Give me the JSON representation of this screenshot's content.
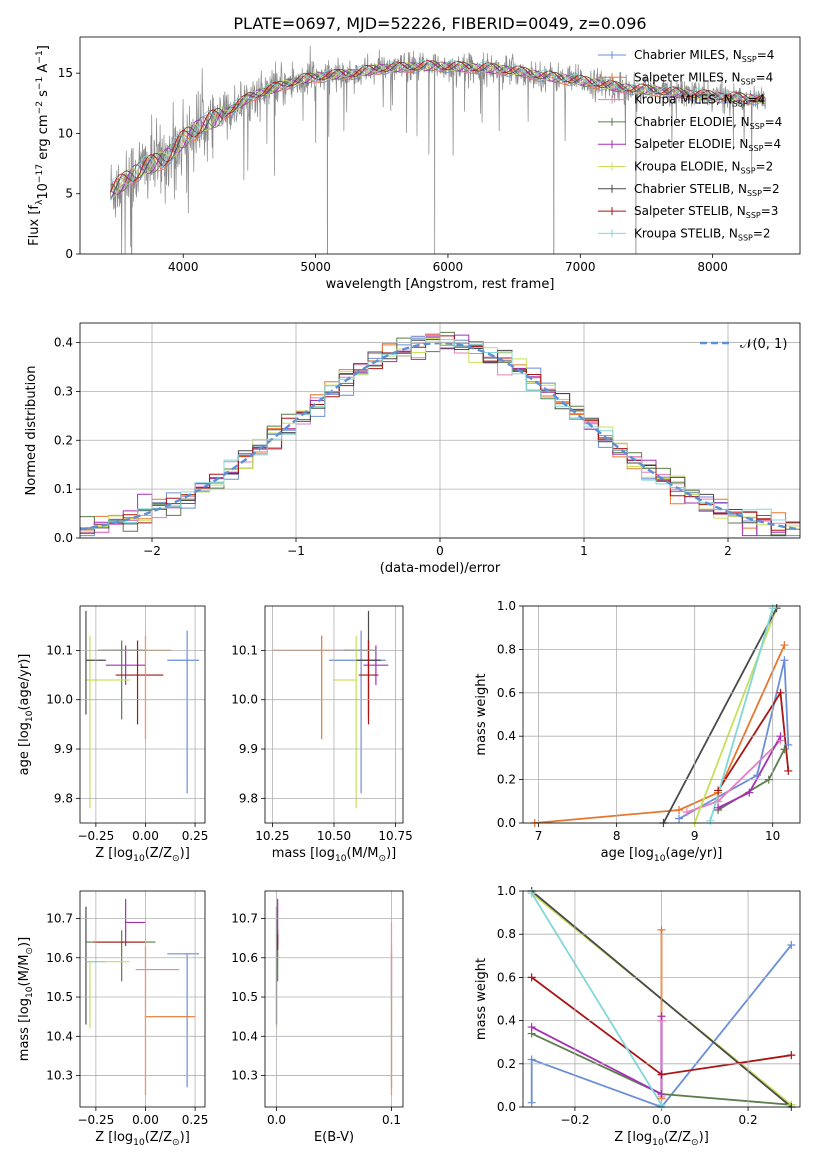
{
  "figure_title": "PLATE=0697, MJD=52226, FIBERID=0049, z=0.096",
  "colors": {
    "chabrier_miles": "#6a8fd8",
    "salpeter_miles": "#e8772e",
    "kroupa_miles": "#e77fbf",
    "chabrier_elodie": "#5b7d4b",
    "salpeter_elodie": "#a52fb5",
    "kroupa_elodie": "#c8e05a",
    "chabrier_stelib": "#4a4a4a",
    "salpeter_stelib": "#a81616",
    "kroupa_stelib": "#80d8d8",
    "data": "#888888",
    "normal": "#5b8fd6"
  },
  "chart_data": [
    {
      "id": "spectrum",
      "type": "line",
      "title": "PLATE=0697, MJD=52226, FIBERID=0049, z=0.096",
      "xlabel": "wavelength [Angstrom, rest frame]",
      "ylabel_parts": [
        "Flux [f",
        "λ",
        "10",
        "−17",
        " erg cm",
        "−2",
        " s",
        "−1",
        " A",
        "−1",
        "]"
      ],
      "xlim": [
        3220,
        8660
      ],
      "ylim": [
        0,
        18
      ],
      "xticks": [
        4000,
        5000,
        6000,
        7000,
        8000
      ],
      "yticks": [
        0,
        5,
        10,
        15
      ],
      "continuum": {
        "x": [
          3450,
          3550,
          3700,
          3850,
          4000,
          4150,
          4300,
          4500,
          4700,
          4900,
          5100,
          5300,
          5500,
          5700,
          5900,
          6100,
          6300,
          6500,
          6700,
          6900,
          7100,
          7300,
          7500,
          7700,
          7900,
          8100,
          8300,
          8400
        ],
        "y": [
          5.2,
          6.0,
          7.2,
          7.8,
          9.5,
          10.8,
          11.5,
          13.0,
          13.8,
          14.5,
          14.8,
          15.0,
          15.4,
          15.5,
          15.6,
          15.5,
          15.4,
          15.2,
          14.8,
          14.5,
          14.2,
          13.8,
          13.6,
          13.4,
          13.2,
          13.0,
          12.9,
          12.8
        ]
      },
      "legend": [
        {
          "label": "Chabrier MILES, N",
          "sub": "SSP",
          "n": "=4",
          "color": "#6a8fd8"
        },
        {
          "label": "Salpeter MILES, N",
          "sub": "SSP",
          "n": "=4",
          "color": "#e8772e"
        },
        {
          "label": "Kroupa MILES, N",
          "sub": "SSP",
          "n": "=4",
          "color": "#e77fbf"
        },
        {
          "label": "Chabrier ELODIE, N",
          "sub": "SSP",
          "n": "=4",
          "color": "#5b7d4b"
        },
        {
          "label": "Salpeter ELODIE, N",
          "sub": "SSP",
          "n": "=4",
          "color": "#a52fb5"
        },
        {
          "label": "Kroupa ELODIE, N",
          "sub": "SSP",
          "n": "=2",
          "color": "#c8e05a"
        },
        {
          "label": "Chabrier STELIB, N",
          "sub": "SSP",
          "n": "=2",
          "color": "#4a4a4a"
        },
        {
          "label": "Salpeter STELIB, N",
          "sub": "SSP",
          "n": "=3",
          "color": "#a81616"
        },
        {
          "label": "Kroupa STELIB, N",
          "sub": "SSP",
          "n": "=2",
          "color": "#80d8d8"
        }
      ],
      "legend_placement": "right",
      "grid": false
    },
    {
      "id": "residuals",
      "type": "histogram",
      "xlabel": "(data-model)/error",
      "ylabel": "Normed distribution",
      "xlim": [
        -2.5,
        2.5
      ],
      "ylim": [
        0,
        0.44
      ],
      "xticks": [
        -2,
        -1,
        0,
        1,
        2
      ],
      "yticks": [
        0.0,
        0.1,
        0.2,
        0.3,
        0.4
      ],
      "bin_width": 0.1,
      "n_histograms": 9,
      "reference_curve": "normal(0,1)",
      "legend": [
        {
          "label": "𝒩(0, 1)",
          "color": "#5b8fd6",
          "style": "dashed"
        }
      ],
      "legend_placement": "top-right",
      "grid": true
    },
    {
      "id": "age_vs_Z",
      "type": "errorbar",
      "xlabel_parts": [
        "Z [log",
        "10",
        "(Z/Z",
        "⊙",
        ")]"
      ],
      "ylabel_parts": [
        "age  [log",
        "10",
        "(age/yr)]"
      ],
      "xlim": [
        -0.33,
        0.3
      ],
      "ylim": [
        9.75,
        10.19
      ],
      "xticks": [
        -0.25,
        0.0,
        0.25
      ],
      "yticks": [
        9.8,
        9.9,
        10.0,
        10.1
      ],
      "points": [
        {
          "x": 0.21,
          "xerr": [
            0.1,
            0.06
          ],
          "y": 10.08,
          "yerr": [
            0.27,
            0.06
          ],
          "color": "#6a8fd8"
        },
        {
          "x": 0.0,
          "xerr": [
            0.17,
            0.13
          ],
          "y": 10.1,
          "yerr": [
            0.18,
            0.03
          ],
          "color": "#e8772e"
        },
        {
          "x": -0.12,
          "xerr": [
            0.1,
            0.1
          ],
          "y": 10.1,
          "yerr": [
            0.0,
            0.0
          ],
          "color": "#e77fbf"
        },
        {
          "x": -0.12,
          "xerr": [
            0.12,
            0.12
          ],
          "y": 10.1,
          "yerr": [
            0.14,
            0.02
          ],
          "color": "#5b7d4b"
        },
        {
          "x": -0.1,
          "xerr": [
            0.1,
            0.1
          ],
          "y": 10.07,
          "yerr": [
            0.04,
            0.04
          ],
          "color": "#a52fb5"
        },
        {
          "x": -0.28,
          "xerr": [
            0.02,
            0.2
          ],
          "y": 10.04,
          "yerr": [
            0.26,
            0.09
          ],
          "color": "#c8e05a"
        },
        {
          "x": -0.3,
          "xerr": [
            0.0,
            0.1
          ],
          "y": 10.08,
          "yerr": [
            0.11,
            0.1
          ],
          "color": "#4a4a4a"
        },
        {
          "x": -0.04,
          "xerr": [
            0.11,
            0.13
          ],
          "y": 10.05,
          "yerr": [
            0.1,
            0.07
          ],
          "color": "#a81616"
        },
        {
          "x": -0.28,
          "xerr": [
            0.0,
            0.0
          ],
          "y": 10.04,
          "yerr": [
            0.0,
            0.0
          ],
          "color": "#80d8d8"
        }
      ],
      "grid": true
    },
    {
      "id": "age_vs_mass",
      "type": "errorbar",
      "xlabel_parts": [
        "mass [log",
        "10",
        "(M/M",
        "⊙",
        ")]"
      ],
      "xlim": [
        10.22,
        10.78
      ],
      "ylim": [
        9.75,
        10.19
      ],
      "xticks": [
        10.25,
        10.5,
        10.75
      ],
      "yticks": [
        9.8,
        9.9,
        10.0,
        10.1
      ],
      "points": [
        {
          "x": 10.61,
          "xerr": [
            0.13,
            0.1
          ],
          "y": 10.08,
          "yerr": [
            0.27,
            0.06
          ],
          "color": "#6a8fd8"
        },
        {
          "x": 10.45,
          "xerr": [
            0.2,
            0.1
          ],
          "y": 10.1,
          "yerr": [
            0.18,
            0.03
          ],
          "color": "#e8772e"
        },
        {
          "x": 10.57,
          "xerr": [
            0.08,
            0.08
          ],
          "y": 10.1,
          "yerr": [
            0.0,
            0.0
          ],
          "color": "#e77fbf"
        },
        {
          "x": 10.64,
          "xerr": [
            0.1,
            0.03
          ],
          "y": 10.1,
          "yerr": [
            0.14,
            0.02
          ],
          "color": "#5b7d4b"
        },
        {
          "x": 10.67,
          "xerr": [
            0.05,
            0.05
          ],
          "y": 10.07,
          "yerr": [
            0.04,
            0.04
          ],
          "color": "#a52fb5"
        },
        {
          "x": 10.59,
          "xerr": [
            0.09,
            0.0
          ],
          "y": 10.04,
          "yerr": [
            0.26,
            0.09
          ],
          "color": "#c8e05a"
        },
        {
          "x": 10.64,
          "xerr": [
            0.05,
            0.05
          ],
          "y": 10.08,
          "yerr": [
            0.11,
            0.1
          ],
          "color": "#4a4a4a"
        },
        {
          "x": 10.64,
          "xerr": [
            0.04,
            0.04
          ],
          "y": 10.05,
          "yerr": [
            0.1,
            0.07
          ],
          "color": "#a81616"
        },
        {
          "x": 10.59,
          "xerr": [
            0.0,
            0.0
          ],
          "y": 10.04,
          "yerr": [
            0.0,
            0.0
          ],
          "color": "#80d8d8"
        }
      ],
      "grid": true
    },
    {
      "id": "weight_vs_age",
      "type": "line",
      "xlabel_parts": [
        "age  [log",
        "10",
        "(age/yr)]"
      ],
      "ylabel": "mass weight",
      "xlim": [
        6.8,
        10.35
      ],
      "ylim": [
        0,
        1
      ],
      "xticks": [
        7,
        8,
        9,
        10
      ],
      "yticks": [
        0.0,
        0.2,
        0.4,
        0.6,
        0.8,
        1.0
      ],
      "series": [
        {
          "color": "#6a8fd8",
          "x": [
            8.8,
            9.8,
            10.15,
            10.2
          ],
          "y": [
            0.02,
            0.22,
            0.75,
            0.36
          ]
        },
        {
          "color": "#e8772e",
          "x": [
            6.95,
            8.8,
            9.3,
            10.15
          ],
          "y": [
            0.0,
            0.06,
            0.14,
            0.82
          ]
        },
        {
          "color": "#e77fbf",
          "x": [
            8.9,
            9.3,
            10.1
          ],
          "y": [
            0.05,
            0.1,
            0.38
          ]
        },
        {
          "color": "#5b7d4b",
          "x": [
            9.3,
            9.95,
            10.15
          ],
          "y": [
            0.06,
            0.2,
            0.34
          ]
        },
        {
          "color": "#a52fb5",
          "x": [
            9.3,
            9.7,
            10.1
          ],
          "y": [
            0.07,
            0.14,
            0.4
          ]
        },
        {
          "color": "#c8e05a",
          "x": [
            9.0,
            10.05
          ],
          "y": [
            0.0,
            0.99
          ]
        },
        {
          "color": "#4a4a4a",
          "x": [
            8.6,
            10.05
          ],
          "y": [
            0.0,
            0.99
          ]
        },
        {
          "color": "#a81616",
          "x": [
            9.3,
            10.1,
            10.2
          ],
          "y": [
            0.15,
            0.6,
            0.24
          ]
        },
        {
          "color": "#80d8d8",
          "x": [
            9.2,
            10.0
          ],
          "y": [
            0.01,
            0.99
          ]
        }
      ],
      "grid": true
    },
    {
      "id": "mass_vs_Z",
      "type": "errorbar",
      "xlabel_parts": [
        "Z [log",
        "10",
        "(Z/Z",
        "⊙",
        ")]"
      ],
      "ylabel_parts": [
        "mass [log",
        "10",
        "(M/M",
        "⊙",
        ")]"
      ],
      "xlim": [
        -0.33,
        0.3
      ],
      "ylim": [
        10.22,
        10.77
      ],
      "xticks": [
        -0.25,
        0.0,
        0.25
      ],
      "yticks": [
        10.3,
        10.4,
        10.5,
        10.6,
        10.7
      ],
      "points": [
        {
          "x": 0.21,
          "xerr": [
            0.1,
            0.06
          ],
          "y": 10.61,
          "yerr": [
            0.34,
            0.0
          ],
          "color": "#6a8fd8"
        },
        {
          "x": 0.0,
          "xerr": [
            0.0,
            0.25
          ],
          "y": 10.45,
          "yerr": [
            0.2,
            0.18
          ],
          "color": "#e8772e"
        },
        {
          "x": 0.05,
          "xerr": [
            0.1,
            0.12
          ],
          "y": 10.57,
          "yerr": [
            0.0,
            0.0
          ],
          "color": "#e77fbf"
        },
        {
          "x": -0.12,
          "xerr": [
            0.18,
            0.17
          ],
          "y": 10.64,
          "yerr": [
            0.1,
            0.03
          ],
          "color": "#5b7d4b"
        },
        {
          "x": -0.1,
          "xerr": [
            0.0,
            0.1
          ],
          "y": 10.69,
          "yerr": [
            0.06,
            0.06
          ],
          "color": "#a52fb5"
        },
        {
          "x": -0.28,
          "xerr": [
            0.02,
            0.2
          ],
          "y": 10.59,
          "yerr": [
            0.17,
            0.0
          ],
          "color": "#c8e05a"
        },
        {
          "x": -0.3,
          "xerr": [
            0.0,
            0.0
          ],
          "y": 10.64,
          "yerr": [
            0.21,
            0.09
          ],
          "color": "#4a4a4a"
        },
        {
          "x": -0.04,
          "xerr": [
            0.22,
            0.04
          ],
          "y": 10.64,
          "yerr": [
            0.0,
            0.0
          ],
          "color": "#a81616"
        },
        {
          "x": -0.26,
          "xerr": [
            0.04,
            0.06
          ],
          "y": 10.59,
          "yerr": [
            0.0,
            0.0
          ],
          "color": "#80d8d8"
        }
      ],
      "grid": true
    },
    {
      "id": "mass_vs_ebv",
      "type": "errorbar",
      "xlabel": "E(B-V)",
      "xlim": [
        -0.01,
        0.11
      ],
      "ylim": [
        10.22,
        10.77
      ],
      "xticks": [
        0.0,
        0.1
      ],
      "yticks": [
        10.3,
        10.4,
        10.5,
        10.6,
        10.7
      ],
      "points": [
        {
          "x": 0.1,
          "xerr": [
            0,
            0
          ],
          "y": 10.61,
          "yerr": [
            0.34,
            0.0
          ],
          "color": "#6a8fd8"
        },
        {
          "x": 0.1,
          "xerr": [
            0,
            0
          ],
          "y": 10.45,
          "yerr": [
            0.2,
            0.18
          ],
          "color": "#e8772e"
        },
        {
          "x": 0.1,
          "xerr": [
            0,
            0
          ],
          "y": 10.57,
          "yerr": [
            0.05,
            0.12
          ],
          "color": "#e77fbf"
        },
        {
          "x": 0.001,
          "xerr": [
            0,
            0
          ],
          "y": 10.64,
          "yerr": [
            0.1,
            0.03
          ],
          "color": "#5b7d4b"
        },
        {
          "x": 0.001,
          "xerr": [
            0,
            0
          ],
          "y": 10.69,
          "yerr": [
            0.06,
            0.06
          ],
          "color": "#a52fb5"
        },
        {
          "x": 0.0,
          "xerr": [
            0,
            0
          ],
          "y": 10.59,
          "yerr": [
            0.17,
            0.0
          ],
          "color": "#c8e05a"
        },
        {
          "x": 0.0,
          "xerr": [
            0,
            0
          ],
          "y": 10.64,
          "yerr": [
            0.21,
            0.09
          ],
          "color": "#4a4a4a"
        },
        {
          "x": 0.001,
          "xerr": [
            0,
            0
          ],
          "y": 10.64,
          "yerr": [
            0.02,
            0.02
          ],
          "color": "#a81616"
        },
        {
          "x": 0.0,
          "xerr": [
            0,
            0
          ],
          "y": 10.59,
          "yerr": [
            0.0,
            0.0
          ],
          "color": "#80d8d8"
        }
      ],
      "grid": true
    },
    {
      "id": "weight_vs_Z",
      "type": "line",
      "xlabel_parts": [
        "Z [log",
        "10",
        "(Z/Z",
        "⊙",
        ")]"
      ],
      "ylabel": "mass weight",
      "xlim": [
        -0.32,
        0.32
      ],
      "ylim": [
        0,
        1
      ],
      "xticks": [
        -0.2,
        0.0,
        0.2
      ],
      "yticks": [
        0.0,
        0.2,
        0.4,
        0.6,
        0.8,
        1.0
      ],
      "series": [
        {
          "color": "#6a8fd8",
          "x": [
            -0.3,
            -0.3,
            0.0,
            0.3
          ],
          "y": [
            0.02,
            0.22,
            0.0,
            0.75
          ]
        },
        {
          "color": "#e8772e",
          "x": [
            0.0,
            0.0
          ],
          "y": [
            0.04,
            0.82
          ]
        },
        {
          "color": "#e77fbf",
          "x": [
            0.0,
            0.0
          ],
          "y": [
            0.05,
            0.4
          ]
        },
        {
          "color": "#5b7d4b",
          "x": [
            -0.3,
            0.0,
            0.3
          ],
          "y": [
            0.34,
            0.06,
            0.01
          ]
        },
        {
          "color": "#a52fb5",
          "x": [
            -0.3,
            0.0,
            0.0
          ],
          "y": [
            0.37,
            0.06,
            0.42
          ]
        },
        {
          "color": "#c8e05a",
          "x": [
            -0.3,
            0.3
          ],
          "y": [
            0.99,
            0.01
          ]
        },
        {
          "color": "#4a4a4a",
          "x": [
            -0.3,
            0.3
          ],
          "y": [
            1.0,
            0.0
          ]
        },
        {
          "color": "#a81616",
          "x": [
            -0.3,
            0.0,
            0.3
          ],
          "y": [
            0.6,
            0.15,
            0.24
          ]
        },
        {
          "color": "#80d8d8",
          "x": [
            -0.3,
            0.0
          ],
          "y": [
            0.99,
            0.01
          ]
        }
      ],
      "grid": true
    }
  ]
}
